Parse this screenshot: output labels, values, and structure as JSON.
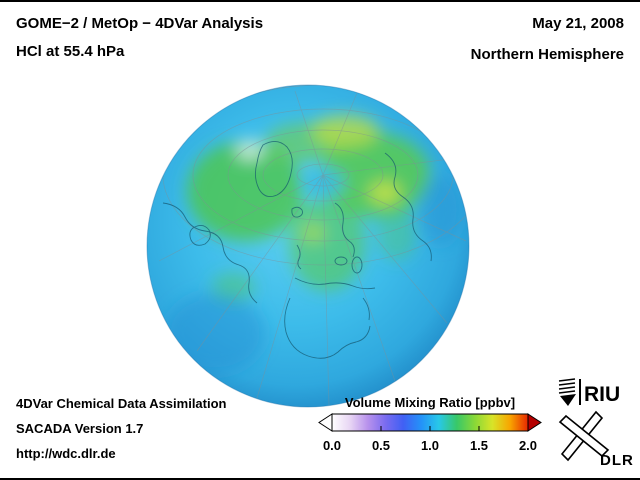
{
  "header": {
    "title": "GOME−2 / MetOp − 4DVar Analysis",
    "subtitle": "HCl at 55.4 hPa",
    "date": "May 21, 2008",
    "hemisphere": "Northern Hemisphere"
  },
  "footer": {
    "line1": "4DVar Chemical Data Assimilation",
    "line2": "SACADA Version 1.7",
    "line3": "http://wdc.dlr.de"
  },
  "colorbar": {
    "title": "Volume Mixing Ratio [ppbv]",
    "ticks": [
      "0.0",
      "0.5",
      "1.0",
      "1.5",
      "2.0"
    ],
    "min": 0.0,
    "max": 2.0,
    "units": "ppbv",
    "colors": [
      "#ffffff",
      "#e8d6f4",
      "#b892ec",
      "#7a6cf0",
      "#4060f4",
      "#2492f8",
      "#28c8e8",
      "#38c868",
      "#88d838",
      "#d8e428",
      "#f8a400",
      "#e82800"
    ],
    "under_color": "#ffffff",
    "over_color": "#b40000"
  },
  "map": {
    "region": "Northern Hemisphere",
    "dominant_value_color": "#3dbcea",
    "enhanced_value_color": "#4cc653"
  },
  "logos": {
    "riu": "RIU",
    "dlr": "DLR"
  }
}
